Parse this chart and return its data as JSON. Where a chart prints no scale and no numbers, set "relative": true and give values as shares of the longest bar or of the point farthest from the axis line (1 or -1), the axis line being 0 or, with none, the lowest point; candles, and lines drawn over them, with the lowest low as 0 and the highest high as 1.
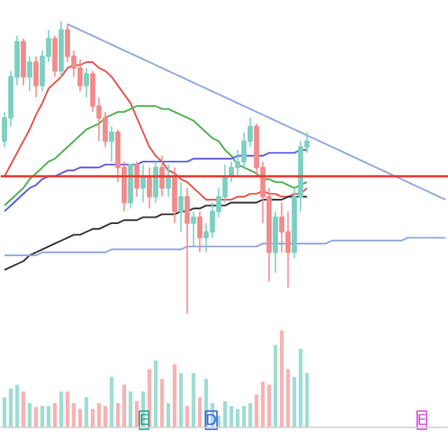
{
  "chart_data": [
    {
      "type": "candlestick",
      "relative": true,
      "tick_labels": false,
      "categories": [
        null,
        null,
        null,
        null,
        null,
        null,
        null,
        null,
        null,
        null,
        null,
        null,
        null,
        null,
        null,
        null,
        null,
        null,
        null,
        null,
        null,
        null,
        null,
        null,
        null,
        null,
        null,
        null,
        null,
        null,
        null,
        null,
        null,
        null,
        null,
        null,
        null,
        null,
        null,
        null,
        null,
        null,
        null,
        null,
        null,
        null,
        null,
        null,
        null,
        null,
        null,
        null,
        null,
        null,
        null,
        null,
        null,
        null,
        null,
        null,
        null,
        null,
        null,
        null,
        null,
        null,
        null,
        null,
        null,
        null,
        null
      ],
      "ohlc": [
        [
          0.59,
          0.69,
          0.57,
          0.67
        ],
        [
          0.67,
          0.83,
          0.64,
          0.81
        ],
        [
          0.81,
          0.95,
          0.78,
          0.93
        ],
        [
          0.93,
          0.94,
          0.78,
          0.81
        ],
        [
          0.81,
          0.88,
          0.76,
          0.86
        ],
        [
          0.86,
          0.88,
          0.74,
          0.78
        ],
        [
          0.78,
          0.9,
          0.76,
          0.88
        ],
        [
          0.88,
          0.97,
          0.86,
          0.94
        ],
        [
          0.94,
          0.95,
          0.81,
          0.83
        ],
        [
          0.83,
          1.0,
          0.81,
          0.97
        ],
        [
          0.97,
          0.99,
          0.86,
          0.88
        ],
        [
          0.88,
          0.9,
          0.81,
          0.84
        ],
        [
          0.84,
          0.87,
          0.76,
          0.78
        ],
        [
          0.78,
          0.84,
          0.74,
          0.82
        ],
        [
          0.82,
          0.83,
          0.69,
          0.71
        ],
        [
          0.71,
          0.74,
          0.59,
          0.67
        ],
        [
          0.67,
          0.69,
          0.57,
          0.59
        ],
        [
          0.59,
          0.64,
          0.52,
          0.62
        ],
        [
          0.62,
          0.63,
          0.45,
          0.5
        ],
        [
          0.5,
          0.52,
          0.35,
          0.38
        ],
        [
          0.38,
          0.51,
          0.36,
          0.51
        ],
        [
          0.51,
          0.52,
          0.4,
          0.43
        ],
        [
          0.43,
          0.51,
          0.38,
          0.47
        ],
        [
          0.47,
          0.5,
          0.36,
          0.4
        ],
        [
          0.4,
          0.52,
          0.38,
          0.5
        ],
        [
          0.5,
          0.54,
          0.4,
          0.43
        ],
        [
          0.43,
          0.51,
          0.4,
          0.47
        ],
        [
          0.47,
          0.5,
          0.31,
          0.35
        ],
        [
          0.35,
          0.45,
          0.28,
          0.4
        ],
        [
          0.4,
          0.43,
          0,
          0.31
        ],
        [
          0.31,
          0.35,
          0.23,
          0.33
        ],
        [
          0.33,
          0.35,
          0.21,
          0.26
        ],
        [
          0.26,
          0.31,
          0.21,
          0.28
        ],
        [
          0.28,
          0.38,
          0.26,
          0.35
        ],
        [
          0.35,
          0.43,
          0.33,
          0.4
        ],
        [
          0.4,
          0.51,
          0.38,
          0.47
        ],
        [
          0.47,
          0.52,
          0.45,
          0.5
        ],
        [
          0.5,
          0.56,
          0.47,
          0.52
        ],
        [
          0.52,
          0.62,
          0.5,
          0.59
        ],
        [
          0.59,
          0.67,
          0.57,
          0.64
        ],
        [
          0.64,
          0.65,
          0.47,
          0.5
        ],
        [
          0.5,
          0.52,
          0.31,
          0.4
        ],
        [
          0.4,
          0.43,
          0.11,
          0.21
        ],
        [
          0.21,
          0.35,
          0.14,
          0.33
        ],
        [
          0.33,
          0.38,
          0.21,
          0.28
        ],
        [
          0.28,
          0.35,
          0.09,
          0.21
        ],
        [
          0.21,
          0.43,
          0.19,
          0.4
        ],
        [
          0.4,
          0.59,
          0.35,
          0.57
        ],
        [
          0.57,
          0.62,
          0.55,
          0.59
        ],
        null,
        null,
        null,
        null,
        null,
        null,
        null,
        null,
        null,
        null,
        null,
        null,
        null,
        null,
        null,
        null,
        null,
        null,
        null,
        null,
        null,
        null
      ],
      "colors": [
        "#7ccfc1",
        "#7ccfc1",
        "#7ccfc1",
        "#f28b8b",
        "#7ccfc1",
        "#f28b8b",
        "#7ccfc1",
        "#7ccfc1",
        "#f28b8b",
        "#7ccfc1",
        "#f28b8b",
        "#f28b8b",
        "#f28b8b",
        "#7ccfc1",
        "#f28b8b",
        "#f28b8b",
        "#f28b8b",
        "#7ccfc1",
        "#f28b8b",
        "#f28b8b",
        "#7ccfc1",
        "#f28b8b",
        "#7ccfc1",
        "#f28b8b",
        "#7ccfc1",
        "#f28b8b",
        "#7ccfc1",
        "#f28b8b",
        "#7ccfc1",
        "#f28b8b",
        "#7ccfc1",
        "#f28b8b",
        "#7ccfc1",
        "#7ccfc1",
        "#7ccfc1",
        "#7ccfc1",
        "#7ccfc1",
        "#7ccfc1",
        "#7ccfc1",
        "#7ccfc1",
        "#f28b8b",
        "#f28b8b",
        "#f28b8b",
        "#7ccfc1",
        "#f28b8b",
        "#f28b8b",
        "#7ccfc1",
        "#7ccfc1",
        "#7ccfc1",
        null,
        null,
        null,
        null,
        null,
        null,
        null,
        null,
        null,
        null,
        null,
        null,
        null,
        null,
        null,
        null,
        null,
        null,
        null,
        null,
        null,
        null
      ],
      "series": [
        {
          "type": "line",
          "color": "#e5534b",
          "values": [
            0.47,
            0.51,
            0.55,
            0.59,
            0.63,
            0.68,
            0.72,
            0.77,
            0.79,
            0.81,
            0.84,
            0.85,
            0.85,
            0.86,
            0.86,
            0.84,
            0.83,
            0.81,
            0.78,
            0.75,
            0.72,
            0.67,
            0.62,
            0.57,
            0.54,
            0.52,
            0.49,
            0.48,
            0.46,
            0.45,
            0.43,
            0.41,
            0.39,
            0.39,
            0.39,
            0.39,
            0.39,
            0.4,
            0.4,
            0.41,
            0.41,
            0.42,
            0.41,
            0.41,
            0.4,
            0.4,
            0.41,
            0.41,
            0.43,
            null,
            null,
            null,
            null,
            null,
            null,
            null,
            null,
            null,
            null,
            null,
            null,
            null,
            null,
            null,
            null,
            null,
            null,
            null,
            null,
            null,
            null
          ]
        },
        {
          "type": "line",
          "color": "#4caf50",
          "values": [
            0.37,
            0.39,
            0.41,
            0.43,
            0.46,
            0.48,
            0.5,
            0.52,
            0.53,
            0.55,
            0.57,
            0.59,
            0.61,
            0.63,
            0.64,
            0.65,
            0.67,
            0.68,
            0.69,
            0.69,
            0.7,
            0.71,
            0.71,
            0.71,
            0.71,
            0.7,
            0.7,
            0.69,
            0.68,
            0.67,
            0.66,
            0.64,
            0.62,
            0.6,
            0.59,
            0.56,
            0.54,
            0.51,
            0.5,
            0.49,
            0.48,
            0.46,
            0.46,
            0.45,
            0.45,
            0.44,
            0.43,
            0.44,
            0.45,
            null,
            null,
            null,
            null,
            null,
            null,
            null,
            null,
            null,
            null,
            null,
            null,
            null,
            null,
            null,
            null,
            null,
            null,
            null,
            null,
            null,
            null
          ]
        },
        {
          "type": "line",
          "color": "#5c5ce0",
          "values": [
            0.35,
            0.37,
            0.39,
            0.41,
            0.43,
            0.44,
            0.46,
            0.47,
            0.47,
            0.48,
            0.49,
            0.49,
            0.5,
            0.5,
            0.5,
            0.5,
            0.51,
            0.51,
            0.51,
            0.51,
            0.51,
            0.51,
            0.52,
            0.52,
            0.52,
            0.52,
            0.52,
            0.52,
            0.52,
            0.52,
            0.53,
            0.53,
            0.53,
            0.53,
            0.53,
            0.53,
            0.53,
            0.54,
            0.54,
            0.54,
            0.54,
            0.54,
            0.55,
            0.55,
            0.55,
            0.55,
            0.55,
            0.56,
            0.56,
            null,
            null,
            null,
            null,
            null,
            null,
            null,
            null,
            null,
            null,
            null,
            null,
            null,
            null,
            null,
            null,
            null,
            null,
            null,
            null,
            null,
            null
          ]
        },
        {
          "type": "line",
          "color": "#333333",
          "values": [
            0.15,
            0.16,
            0.17,
            0.18,
            0.2,
            0.21,
            0.22,
            0.23,
            0.24,
            0.25,
            0.26,
            0.27,
            0.27,
            0.28,
            0.29,
            0.29,
            0.3,
            0.31,
            0.31,
            0.32,
            0.32,
            0.32,
            0.33,
            0.33,
            0.33,
            0.34,
            0.34,
            0.34,
            0.35,
            0.35,
            0.36,
            0.36,
            0.37,
            0.37,
            0.37,
            0.37,
            0.38,
            0.38,
            0.38,
            0.38,
            0.38,
            0.39,
            0.39,
            0.39,
            0.39,
            0.4,
            0.4,
            0.4,
            0.4,
            null,
            null,
            null,
            null,
            null,
            null,
            null,
            null,
            null,
            null,
            null,
            null,
            null,
            null,
            null,
            null,
            null,
            null,
            null,
            null,
            null,
            null
          ]
        },
        {
          "type": "line",
          "color": "#8fa8e0",
          "values": [
            null,
            null,
            null,
            null,
            null,
            null,
            null,
            null,
            null,
            null,
            0.99,
            0.98,
            0.97,
            0.96,
            0.95,
            0.94,
            0.93,
            0.92,
            0.91,
            0.9,
            0.89,
            0.88,
            0.87,
            0.86,
            0.85,
            0.84,
            0.83,
            0.82,
            0.81,
            0.8,
            0.79,
            0.78,
            0.77,
            0.76,
            0.75,
            0.74,
            0.73,
            0.72,
            0.71,
            0.7,
            0.69,
            0.68,
            0.67,
            0.66,
            0.65,
            0.64,
            0.63,
            0.62,
            0.61,
            0.6,
            0.59,
            0.58,
            0.57,
            0.56,
            0.55,
            0.54,
            0.53,
            0.52,
            0.51,
            0.5,
            0.49,
            0.48,
            0.47,
            0.46,
            0.45,
            0.44,
            0.43,
            0.42,
            0.41,
            0.4,
            0.39
          ]
        },
        {
          "type": "line",
          "color": "#8fa8e0",
          "values": [
            0.2,
            0.2,
            0.2,
            0.2,
            0.2,
            0.2,
            0.21,
            0.21,
            0.21,
            0.21,
            0.21,
            0.21,
            0.21,
            0.21,
            0.21,
            0.21,
            0.21,
            0.22,
            0.22,
            0.22,
            0.22,
            0.22,
            0.22,
            0.22,
            0.22,
            0.22,
            0.22,
            0.22,
            0.22,
            0.23,
            0.23,
            0.23,
            0.23,
            0.23,
            0.23,
            0.23,
            0.23,
            0.23,
            0.23,
            0.23,
            0.23,
            0.24,
            0.24,
            0.24,
            0.24,
            0.24,
            0.24,
            0.24,
            0.24,
            0.24,
            0.24,
            0.24,
            0.25,
            0.25,
            0.25,
            0.25,
            0.25,
            0.25,
            0.25,
            0.25,
            0.25,
            0.25,
            0.25,
            0.25,
            0.26,
            0.26,
            0.26,
            0.26,
            0.26,
            0.26,
            0.26
          ]
        }
      ],
      "ref_lines": [
        {
          "axis": "y",
          "value": 0.47,
          "color": "#e53935"
        }
      ]
    },
    {
      "type": "bar",
      "relative": true,
      "tick_labels": false,
      "categories": [
        null,
        null,
        null,
        null,
        null,
        null,
        null,
        null,
        null,
        null,
        null,
        null,
        null,
        null,
        null,
        null,
        null,
        null,
        null,
        null,
        null,
        null,
        null,
        null,
        null,
        null,
        null,
        null,
        null,
        null,
        null,
        null,
        null,
        null,
        null,
        null,
        null,
        null,
        null,
        null,
        null,
        null,
        null,
        null,
        null,
        null,
        null,
        null,
        null
      ],
      "values": [
        0.31,
        0.4,
        0.44,
        0.37,
        0.25,
        0.21,
        0.22,
        0.22,
        0.25,
        0.37,
        0.37,
        0.25,
        0.19,
        0.31,
        0.19,
        0.25,
        0.22,
        0.52,
        0.25,
        0.44,
        0.37,
        0.27,
        0.37,
        0.6,
        0.69,
        0.5,
        0.25,
        0.65,
        0.56,
        0.22,
        0.56,
        0.31,
        0.5,
        0.25,
        0.12,
        0.27,
        0.22,
        0.19,
        0.22,
        0.25,
        0.34,
        0.47,
        0.44,
        0.85,
        1,
        0.6,
        0.52,
        0.81,
        0.56
      ],
      "colors": [
        "#9fdcd2",
        "#9fdcd2",
        "#9fdcd2",
        "#f7b2b2",
        "#9fdcd2",
        "#f7b2b2",
        "#9fdcd2",
        "#9fdcd2",
        "#f7b2b2",
        "#9fdcd2",
        "#f7b2b2",
        "#f7b2b2",
        "#f7b2b2",
        "#9fdcd2",
        "#f7b2b2",
        "#f7b2b2",
        "#f7b2b2",
        "#9fdcd2",
        "#f7b2b2",
        "#f7b2b2",
        "#9fdcd2",
        "#f7b2b2",
        "#9fdcd2",
        "#f7b2b2",
        "#9fdcd2",
        "#f7b2b2",
        "#9fdcd2",
        "#f7b2b2",
        "#9fdcd2",
        "#f7b2b2",
        "#9fdcd2",
        "#f7b2b2",
        "#9fdcd2",
        "#9fdcd2",
        "#9fdcd2",
        "#9fdcd2",
        "#9fdcd2",
        "#9fdcd2",
        "#9fdcd2",
        "#9fdcd2",
        "#f7b2b2",
        "#f7b2b2",
        "#f7b2b2",
        "#9fdcd2",
        "#f7b2b2",
        "#f7b2b2",
        "#9fdcd2",
        "#9fdcd2",
        "#9fdcd2"
      ],
      "annotations": [
        "E",
        "D",
        "E"
      ]
    }
  ]
}
